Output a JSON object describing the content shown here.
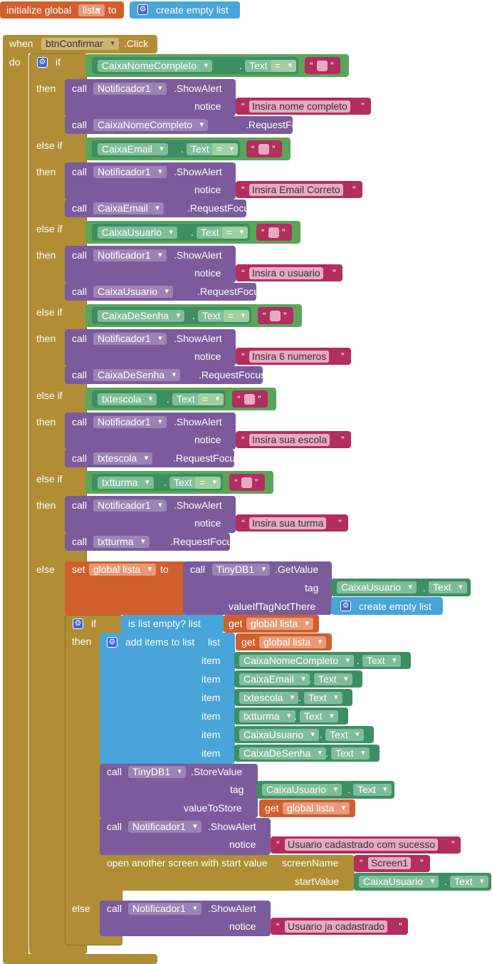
{
  "init": {
    "label": "initialize global",
    "var": "lista",
    "to": "to",
    "value": "create empty list"
  },
  "event": {
    "when": "when",
    "component": "btnConfirmar",
    "event": ".Click",
    "do": "do"
  },
  "kw": {
    "if": "if",
    "then": "then",
    "else_if": "else if",
    "else": "else",
    "call": "call",
    "set": "set",
    "to": "to",
    "get": "get",
    "dot": ".",
    "quote": "“",
    "quote_end": "”"
  },
  "alerts": {
    "notifier": "Notificador1",
    "method": ".ShowAlert",
    "notice": "notice",
    "request_focus": ".RequestFocus",
    "text": "Text",
    "eq": "="
  },
  "branches": [
    {
      "component": "CaixaNomeCompleto",
      "message": "Insira nome completo"
    },
    {
      "component": "CaixaEmail",
      "message": "Insira Email Correto"
    },
    {
      "component": "CaixaUsuario",
      "message": "Insira o usuario"
    },
    {
      "component": "CaixaDeSenha",
      "message": "Insira  6 numeros"
    },
    {
      "component": "txtescola",
      "message": "Insira  sua escola"
    },
    {
      "component": "txtturma",
      "message": "Insira  sua turma"
    }
  ],
  "else_block": {
    "set_var": "global lista",
    "db": "TinyDB1",
    "get_value": ".GetValue",
    "tag": "tag",
    "tag_component": "CaixaUsuario",
    "value_if_not": "valueIfTagNotThere",
    "create_empty": "create empty list",
    "is_empty": "is list empty?  list",
    "get_var": "global lista",
    "add_items": "add items to list",
    "list": "list",
    "item": "item",
    "items": [
      "CaixaNomeCompleto",
      "CaixaEmail",
      "txtescola",
      "txtturma",
      "CaixaUsuario",
      "CaixaDeSenha"
    ],
    "store_value": ".StoreValue",
    "value_to_store": "valueToStore",
    "success_msg": "Usuario cadastrado com sucesso",
    "open_screen": "open another screen with start value",
    "screen_name": "screenName",
    "screen": "Screen1",
    "start_value": "startValue",
    "already_msg": "Usuario ja cadastrado"
  }
}
